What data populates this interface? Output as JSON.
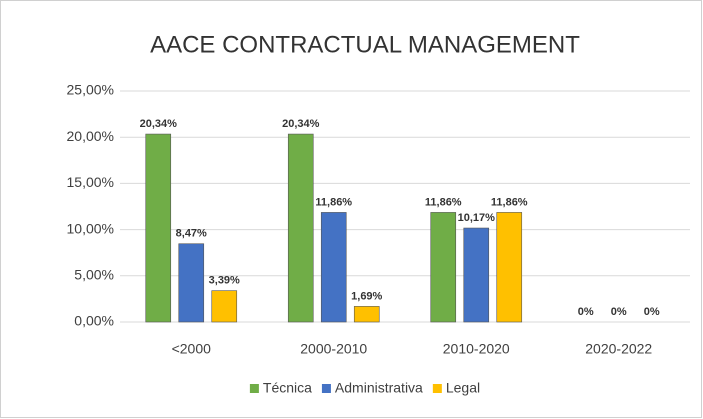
{
  "chart_data": {
    "type": "bar",
    "title": "AACE CONTRACTUAL MANAGEMENT",
    "categories": [
      "<2000",
      "2000-2010",
      "2010-2020",
      "2020-2022"
    ],
    "series": [
      {
        "name": "Técnica",
        "color": "#70ad47",
        "values": [
          20.34,
          20.34,
          11.86,
          0
        ],
        "value_labels": [
          "20,34%",
          "20,34%",
          "11,86%",
          "0%"
        ]
      },
      {
        "name": "Administrativa",
        "color": "#4472c4",
        "values": [
          8.47,
          11.86,
          10.17,
          0
        ],
        "value_labels": [
          "8,47%",
          "11,86%",
          "10,17%",
          "0%"
        ]
      },
      {
        "name": "Legal",
        "color": "#ffc000",
        "values": [
          3.39,
          1.69,
          11.86,
          0
        ],
        "value_labels": [
          "3,39%",
          "1,69%",
          "11,86%",
          "0%"
        ]
      }
    ],
    "ylim": [
      0,
      25
    ],
    "yticks": [
      {
        "value": 0,
        "label": "0,00%"
      },
      {
        "value": 5,
        "label": "5,00%"
      },
      {
        "value": 10,
        "label": "10,00%"
      },
      {
        "value": 15,
        "label": "15,00%"
      },
      {
        "value": 20,
        "label": "20,00%"
      },
      {
        "value": 25,
        "label": "25,00%"
      }
    ],
    "grid": true,
    "legend": "bottom"
  }
}
